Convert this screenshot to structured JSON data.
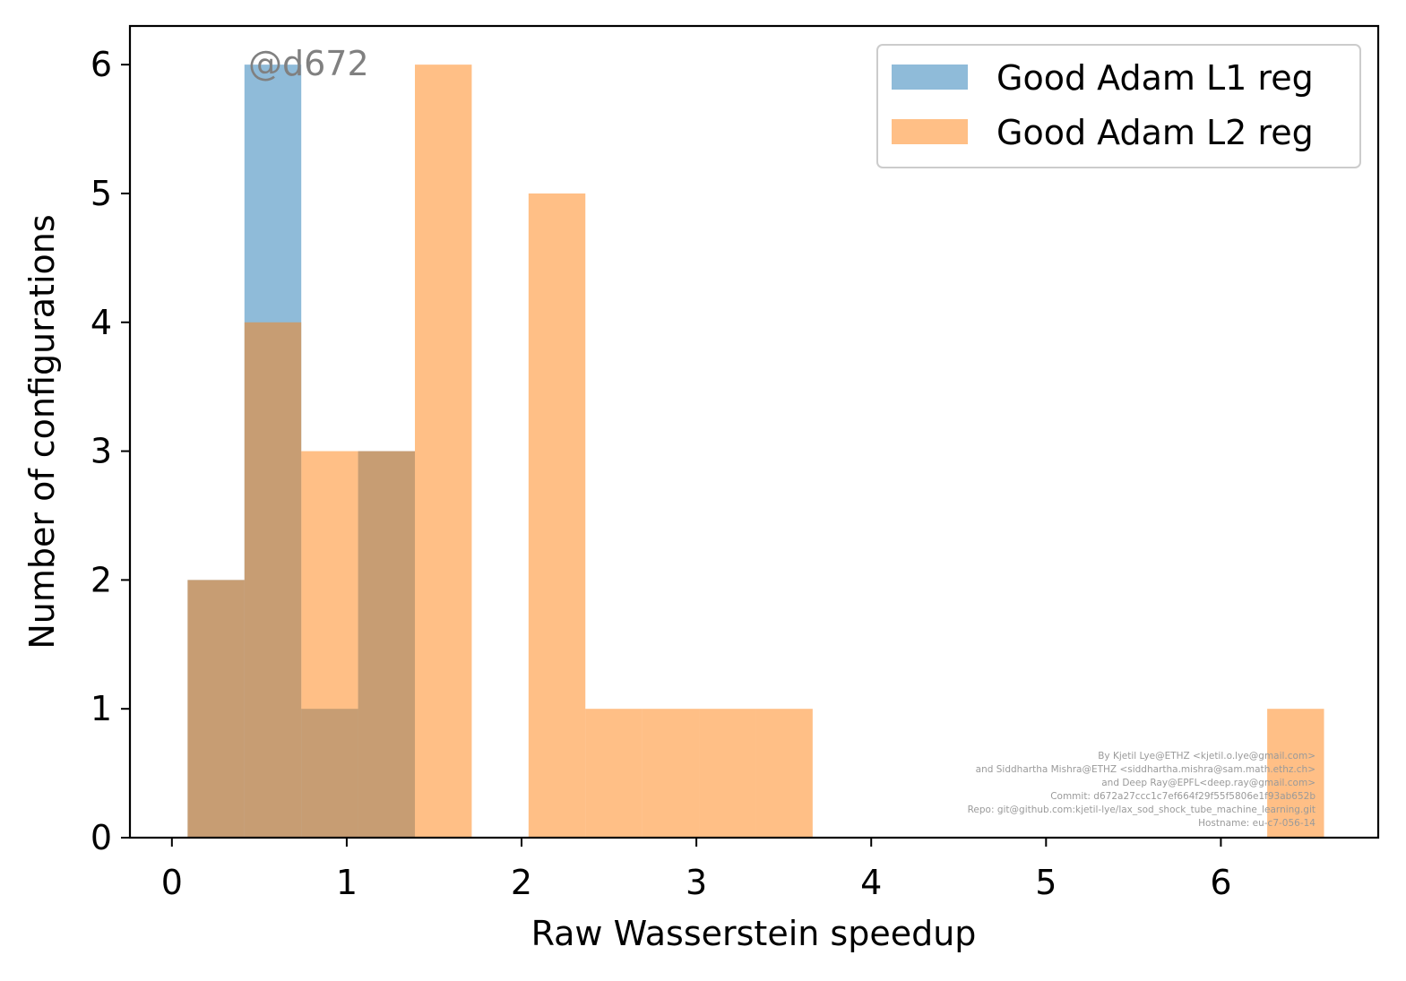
{
  "chart_data": {
    "type": "bar",
    "xlabel": "Raw Wasserstein speedup",
    "ylabel": "Number of configurations",
    "xlim": [
      -0.24,
      6.9
    ],
    "ylim": [
      0,
      6.3
    ],
    "xticks": [
      "0",
      "1",
      "2",
      "3",
      "4",
      "5",
      "6"
    ],
    "yticks": [
      "0",
      "1",
      "2",
      "3",
      "4",
      "5",
      "6"
    ],
    "grid": false,
    "legend_position": "top-right",
    "bin_edges": [
      0.09,
      0.415,
      0.74,
      1.065,
      1.39,
      1.715,
      2.04,
      2.365,
      2.69,
      3.015,
      3.34,
      3.665,
      3.99,
      4.315,
      4.64,
      4.965,
      5.29,
      5.615,
      5.94,
      6.265,
      6.59
    ],
    "series": [
      {
        "name": "Good Adam L1 reg",
        "color": "#1f77b4",
        "opacity": 0.5,
        "values": [
          2,
          6,
          1,
          3,
          0,
          0,
          0,
          0,
          0,
          0,
          0,
          0,
          0,
          0,
          0,
          0,
          0,
          0,
          0,
          0
        ]
      },
      {
        "name": "Good Adam L2 reg",
        "color": "#ff7f0e",
        "opacity": 0.5,
        "values": [
          2,
          4,
          3,
          3,
          6,
          0,
          5,
          1,
          1,
          1,
          1,
          0,
          0,
          0,
          0,
          0,
          0,
          0,
          0,
          1
        ]
      }
    ]
  },
  "watermark": "@d672",
  "credits": [
    "By Kjetil Lye@ETHZ <kjetil.o.lye@gmail.com>",
    "and Siddhartha Mishra@ETHZ <siddhartha.mishra@sam.math.ethz.ch>",
    "and Deep Ray@EPFL<deep.ray@gmail.com>",
    "Commit: d672a27ccc1c7ef664f29f55f5806e1f93ab652b",
    "Repo: git@github.com:kjetil-lye/lax_sod_shock_tube_machine_learning.git",
    "Hostname: eu-c7-056-14"
  ]
}
